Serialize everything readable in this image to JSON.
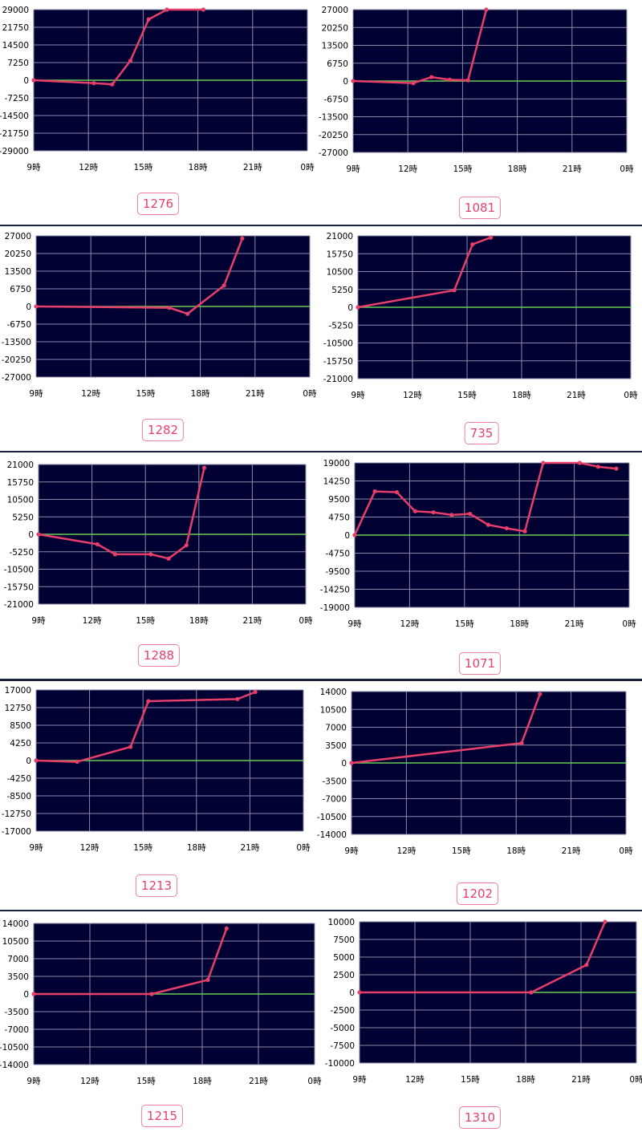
{
  "colors": {
    "plot_bg": "#000033",
    "grid": "#8a8aa8",
    "zero_line": "#66cc55",
    "series": "#e83e6a",
    "label_text": "#e8406a",
    "label_border": "#f0809a"
  },
  "x_axis_ticks": [
    "9時",
    "12時",
    "15時",
    "18時",
    "21時",
    "0時"
  ],
  "chart_data": [
    {
      "type": "line",
      "label": "1276",
      "y_ticks": [
        "29000",
        "21750",
        "14500",
        "7250",
        "0",
        "-7250",
        "-14500",
        "-21750",
        "-29000"
      ],
      "x_labels": [
        "9時",
        "12時",
        "15時",
        "18時",
        "21時",
        "0時"
      ],
      "xlim": [
        9,
        24
      ],
      "ylim": [
        -29000,
        29000
      ],
      "x": [
        9,
        12.3,
        13.3,
        14.3,
        15.3,
        16.3,
        18.3
      ],
      "y": [
        0,
        -1200,
        -1700,
        8000,
        25000,
        29000,
        29000
      ]
    },
    {
      "type": "line",
      "label": "1081",
      "y_ticks": [
        "27000",
        "20250",
        "13500",
        "6750",
        "0",
        "-6750",
        "-13500",
        "-20250",
        "-27000"
      ],
      "x_labels": [
        "9時",
        "12時",
        "15時",
        "18時",
        "21時",
        "0時"
      ],
      "xlim": [
        9,
        24
      ],
      "ylim": [
        -27000,
        27000
      ],
      "x": [
        9,
        12.3,
        13.3,
        14.3,
        15.3,
        16.3
      ],
      "y": [
        0,
        -800,
        1500,
        500,
        300,
        27000
      ]
    },
    {
      "type": "line",
      "label": "1282",
      "y_ticks": [
        "27000",
        "20250",
        "13500",
        "6750",
        "0",
        "-6750",
        "-13500",
        "-20250",
        "-27000"
      ],
      "x_labels": [
        "9時",
        "12時",
        "15時",
        "18時",
        "21時",
        "0時"
      ],
      "xlim": [
        9,
        24
      ],
      "ylim": [
        -27000,
        27000
      ],
      "x": [
        9,
        16.3,
        17.3,
        19.3,
        20.3
      ],
      "y": [
        0,
        -500,
        -2800,
        8000,
        26000
      ]
    },
    {
      "type": "line",
      "label": "735",
      "y_ticks": [
        "21000",
        "15750",
        "10500",
        "5250",
        "0",
        "-5250",
        "-10500",
        "-15750",
        "-21000"
      ],
      "x_labels": [
        "9時",
        "12時",
        "15時",
        "18時",
        "21時",
        "0時"
      ],
      "xlim": [
        9,
        24
      ],
      "ylim": [
        -21000,
        21000
      ],
      "x": [
        9,
        14.3,
        15.3,
        16.3
      ],
      "y": [
        0,
        5000,
        18500,
        20500
      ]
    },
    {
      "type": "line",
      "label": "1288",
      "y_ticks": [
        "21000",
        "15750",
        "10500",
        "5250",
        "0",
        "-5250",
        "-10500",
        "-15750",
        "-21000"
      ],
      "x_labels": [
        "9時",
        "12時",
        "15時",
        "18時",
        "21時",
        "0時"
      ],
      "xlim": [
        9,
        24
      ],
      "ylim": [
        -21000,
        21000
      ],
      "x": [
        9,
        12.3,
        13.3,
        15.3,
        16.3,
        17.3,
        18.3
      ],
      "y": [
        0,
        -3000,
        -6000,
        -6000,
        -7300,
        -3300,
        20000
      ]
    },
    {
      "type": "line",
      "label": "1071",
      "y_ticks": [
        "19000",
        "14250",
        "9500",
        "4750",
        "0",
        "-4750",
        "-9500",
        "-14250",
        "-19000"
      ],
      "x_labels": [
        "9時",
        "12時",
        "15時",
        "18時",
        "21時",
        "0時"
      ],
      "xlim": [
        9,
        24
      ],
      "ylim": [
        -19000,
        19000
      ],
      "x": [
        9,
        10.1,
        11.3,
        12.3,
        13.3,
        14.3,
        15.3,
        16.3,
        17.3,
        18.3,
        19.3,
        21.3,
        22.3,
        23.3
      ],
      "y": [
        0,
        11500,
        11300,
        6300,
        6000,
        5300,
        5600,
        2700,
        1800,
        1000,
        19000,
        19000,
        18000,
        17500
      ]
    },
    {
      "type": "line",
      "label": "1213",
      "y_ticks": [
        "17000",
        "12750",
        "8500",
        "4250",
        "0",
        "-4250",
        "-8500",
        "-12750",
        "-17000"
      ],
      "x_labels": [
        "9時",
        "12時",
        "15時",
        "18時",
        "21時",
        "0時"
      ],
      "xlim": [
        9,
        24
      ],
      "ylim": [
        -17000,
        17000
      ],
      "x": [
        9,
        11.3,
        14.3,
        15.3,
        20.3,
        21.3
      ],
      "y": [
        0,
        -300,
        3300,
        14300,
        14800,
        16500
      ]
    },
    {
      "type": "line",
      "label": "1202",
      "y_ticks": [
        "14000",
        "10500",
        "7000",
        "3500",
        "0",
        "-3500",
        "-7000",
        "-10500",
        "-14000"
      ],
      "x_labels": [
        "9時",
        "12時",
        "15時",
        "18時",
        "21時",
        "0時"
      ],
      "xlim": [
        9,
        24
      ],
      "ylim": [
        -14000,
        14000
      ],
      "x": [
        9,
        18.3,
        19.3
      ],
      "y": [
        0,
        3900,
        13500
      ]
    },
    {
      "type": "line",
      "label": "1215",
      "y_ticks": [
        "14000",
        "10500",
        "7000",
        "3500",
        "0",
        "-3500",
        "-7000",
        "-10500",
        "-14000"
      ],
      "x_labels": [
        "9時",
        "12時",
        "15時",
        "18時",
        "21時",
        "0時"
      ],
      "xlim": [
        9,
        24
      ],
      "ylim": [
        -14000,
        14000
      ],
      "x": [
        9,
        15.3,
        18.3,
        19.3
      ],
      "y": [
        0,
        0,
        2800,
        13000
      ]
    },
    {
      "type": "line",
      "label": "1310",
      "y_ticks": [
        "10000",
        "7500",
        "5000",
        "2500",
        "0",
        "-2500",
        "-5000",
        "-7500",
        "-10000"
      ],
      "x_labels": [
        "9時",
        "12時",
        "15時",
        "18時",
        "21時",
        "0時"
      ],
      "xlim": [
        9,
        24
      ],
      "ylim": [
        -10000,
        10000
      ],
      "x": [
        9,
        18.3,
        21.3,
        22.3
      ],
      "y": [
        0,
        0,
        3900,
        10000
      ]
    }
  ]
}
